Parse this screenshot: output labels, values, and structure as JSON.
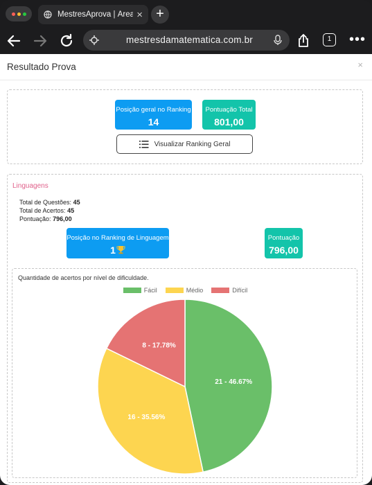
{
  "browser": {
    "tab_title": "MestresAprova | Área do",
    "url": "mestresdamatematica.com.br",
    "tab_count": "1"
  },
  "modal": {
    "title": "Resultado Prova",
    "close": "×"
  },
  "overall": {
    "rank_label": "Posição geral no Ranking",
    "rank_value": "14",
    "score_label": "Pontuação Total",
    "score_value": "801,00",
    "ranking_button": "Visualizar Ranking Geral"
  },
  "section": {
    "title": "Linguagens",
    "total_questions_label": "Total de Questões:",
    "total_questions": "45",
    "total_correct_label": "Total de Acertos:",
    "total_correct": "45",
    "score_label": "Pontuação:",
    "score": "796,00",
    "rank_badge_label": "Posição no Ranking de Linguagem",
    "rank_badge_value": "1",
    "score_badge_label": "Pontuação",
    "score_badge_value": "796,00"
  },
  "colors": {
    "blue": "#0d9cf2",
    "teal": "#13c4aa",
    "section_title": "#e0608a"
  },
  "chart_data": {
    "type": "pie",
    "title": "Quantidade de acertos por nível de dificuldade.",
    "legend_position": "top",
    "categories": [
      "Fácil",
      "Médio",
      "Difícil"
    ],
    "values": [
      21,
      16,
      8
    ],
    "labels": [
      "21 - 46.67%",
      "16 - 35.56%",
      "8 - 17.78%"
    ],
    "colors": [
      "#6abf69",
      "#fdd550",
      "#e57373"
    ]
  }
}
